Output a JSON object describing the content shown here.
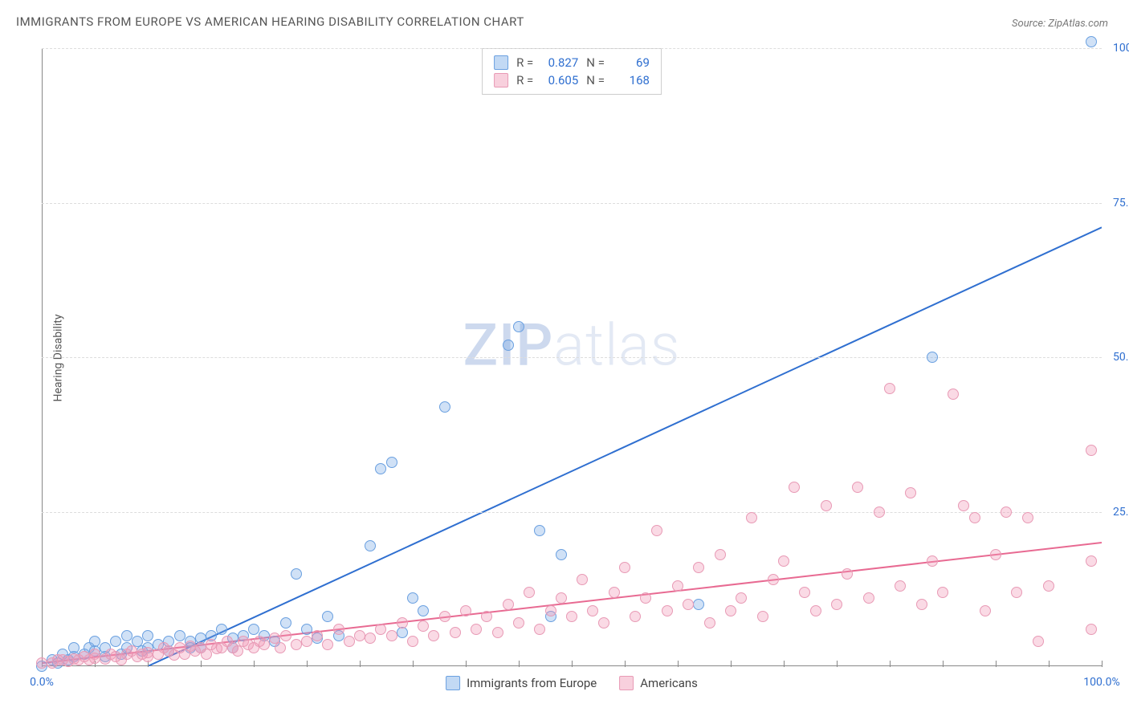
{
  "title": "IMMIGRANTS FROM EUROPE VS AMERICAN HEARING DISABILITY CORRELATION CHART",
  "source": "Source: ZipAtlas.com",
  "watermark_left": "ZIP",
  "watermark_right": "atlas",
  "chart": {
    "type": "scatter",
    "ylabel": "Hearing Disability",
    "xlim": [
      0,
      100
    ],
    "ylim": [
      0,
      100
    ],
    "y_ticks": [
      0,
      25,
      50,
      75,
      100
    ],
    "y_tick_labels": [
      "",
      "25.0%",
      "50.0%",
      "75.0%",
      "100.0%"
    ],
    "y_tick_color": "#2f6fd0",
    "x_ticks": [
      0,
      5,
      10,
      15,
      20,
      25,
      30,
      35,
      40,
      45,
      50,
      55,
      60,
      65,
      70,
      75,
      80,
      85,
      90,
      95,
      100
    ],
    "x_min_label": "0.0%",
    "x_max_label": "100.0%",
    "grid_color": "#dddddd",
    "axis_color": "#888888",
    "background_color": "#ffffff",
    "series": [
      {
        "name": "Immigrants from Europe",
        "legend_label": "Immigrants from Europe",
        "marker_fill": "rgba(120,170,230,0.35)",
        "marker_stroke": "#6aa0e0",
        "trend_color": "#2f6fd0",
        "trend_width": 2,
        "R": "0.827",
        "N": "69",
        "trend": {
          "x1": 10,
          "y1": 0,
          "x2": 100,
          "y2": 71
        },
        "points": [
          [
            0,
            0
          ],
          [
            1,
            1
          ],
          [
            1.5,
            0.5
          ],
          [
            2,
            2
          ],
          [
            2.5,
            1
          ],
          [
            3,
            3
          ],
          [
            3,
            1.5
          ],
          [
            4,
            2
          ],
          [
            4.5,
            3
          ],
          [
            5,
            2.5
          ],
          [
            5,
            4
          ],
          [
            6,
            3
          ],
          [
            6,
            1.5
          ],
          [
            7,
            4
          ],
          [
            7.5,
            2
          ],
          [
            8,
            5
          ],
          [
            8,
            3
          ],
          [
            9,
            4
          ],
          [
            9.5,
            2.5
          ],
          [
            10,
            5
          ],
          [
            10,
            3
          ],
          [
            11,
            3.5
          ],
          [
            12,
            4
          ],
          [
            12,
            2.5
          ],
          [
            13,
            5
          ],
          [
            14,
            4
          ],
          [
            14,
            3
          ],
          [
            15,
            4.5
          ],
          [
            15,
            3
          ],
          [
            16,
            5
          ],
          [
            17,
            6
          ],
          [
            18,
            4.5
          ],
          [
            18,
            3
          ],
          [
            19,
            5
          ],
          [
            20,
            6
          ],
          [
            21,
            5
          ],
          [
            22,
            4
          ],
          [
            23,
            7
          ],
          [
            24,
            15
          ],
          [
            25,
            6
          ],
          [
            26,
            4.5
          ],
          [
            27,
            8
          ],
          [
            28,
            5
          ],
          [
            31,
            19.5
          ],
          [
            32,
            32
          ],
          [
            33,
            33
          ],
          [
            34,
            5.5
          ],
          [
            35,
            11
          ],
          [
            36,
            9
          ],
          [
            38,
            42
          ],
          [
            44,
            52
          ],
          [
            45,
            55
          ],
          [
            47,
            22
          ],
          [
            48,
            8
          ],
          [
            49,
            18
          ],
          [
            62,
            10
          ],
          [
            84,
            50
          ],
          [
            99,
            101
          ]
        ]
      },
      {
        "name": "Americans",
        "legend_label": "Americans",
        "marker_fill": "rgba(240,150,180,0.35)",
        "marker_stroke": "#e89ab5",
        "trend_color": "#e86a92",
        "trend_width": 2,
        "R": "0.605",
        "N": "168",
        "trend": {
          "x1": 0,
          "y1": 0.5,
          "x2": 100,
          "y2": 20
        },
        "points": [
          [
            0,
            0.5
          ],
          [
            1,
            0.5
          ],
          [
            1.5,
            1
          ],
          [
            2,
            1
          ],
          [
            2.5,
            0.8
          ],
          [
            3,
            1.2
          ],
          [
            3.5,
            1
          ],
          [
            4,
            1.5
          ],
          [
            4.5,
            1
          ],
          [
            5,
            1.3
          ],
          [
            5,
            2
          ],
          [
            6,
            1.2
          ],
          [
            6.5,
            2
          ],
          [
            7,
            1.5
          ],
          [
            7.5,
            1
          ],
          [
            8,
            2
          ],
          [
            8.5,
            2.5
          ],
          [
            9,
            1.5
          ],
          [
            9.5,
            2
          ],
          [
            10,
            2.2
          ],
          [
            10,
            1.5
          ],
          [
            11,
            2
          ],
          [
            11.5,
            3
          ],
          [
            12,
            2.5
          ],
          [
            12.5,
            1.8
          ],
          [
            13,
            3
          ],
          [
            13.5,
            2
          ],
          [
            14,
            3.2
          ],
          [
            14.5,
            2.5
          ],
          [
            15,
            3
          ],
          [
            15.5,
            2
          ],
          [
            16,
            3.5
          ],
          [
            16.5,
            2.8
          ],
          [
            17,
            3
          ],
          [
            17.5,
            4
          ],
          [
            18,
            3
          ],
          [
            18.5,
            2.5
          ],
          [
            19,
            4
          ],
          [
            19.5,
            3.5
          ],
          [
            20,
            3
          ],
          [
            20.5,
            4
          ],
          [
            21,
            3.5
          ],
          [
            22,
            4.5
          ],
          [
            22.5,
            3
          ],
          [
            23,
            5
          ],
          [
            24,
            3.5
          ],
          [
            25,
            4
          ],
          [
            26,
            5
          ],
          [
            27,
            3.5
          ],
          [
            28,
            6
          ],
          [
            29,
            4
          ],
          [
            30,
            5
          ],
          [
            31,
            4.5
          ],
          [
            32,
            6
          ],
          [
            33,
            5
          ],
          [
            34,
            7
          ],
          [
            35,
            4
          ],
          [
            36,
            6.5
          ],
          [
            37,
            5
          ],
          [
            38,
            8
          ],
          [
            39,
            5.5
          ],
          [
            40,
            9
          ],
          [
            41,
            6
          ],
          [
            42,
            8
          ],
          [
            43,
            5.5
          ],
          [
            44,
            10
          ],
          [
            45,
            7
          ],
          [
            46,
            12
          ],
          [
            47,
            6
          ],
          [
            48,
            9
          ],
          [
            49,
            11
          ],
          [
            50,
            8
          ],
          [
            51,
            14
          ],
          [
            52,
            9
          ],
          [
            53,
            7
          ],
          [
            54,
            12
          ],
          [
            55,
            16
          ],
          [
            56,
            8
          ],
          [
            57,
            11
          ],
          [
            58,
            22
          ],
          [
            59,
            9
          ],
          [
            60,
            13
          ],
          [
            61,
            10
          ],
          [
            62,
            16
          ],
          [
            63,
            7
          ],
          [
            64,
            18
          ],
          [
            65,
            9
          ],
          [
            66,
            11
          ],
          [
            67,
            24
          ],
          [
            68,
            8
          ],
          [
            69,
            14
          ],
          [
            70,
            17
          ],
          [
            71,
            29
          ],
          [
            72,
            12
          ],
          [
            73,
            9
          ],
          [
            74,
            26
          ],
          [
            75,
            10
          ],
          [
            76,
            15
          ],
          [
            77,
            29
          ],
          [
            78,
            11
          ],
          [
            79,
            25
          ],
          [
            80,
            45
          ],
          [
            81,
            13
          ],
          [
            82,
            28
          ],
          [
            83,
            10
          ],
          [
            84,
            17
          ],
          [
            85,
            12
          ],
          [
            86,
            44
          ],
          [
            87,
            26
          ],
          [
            88,
            24
          ],
          [
            89,
            9
          ],
          [
            90,
            18
          ],
          [
            91,
            25
          ],
          [
            92,
            12
          ],
          [
            93,
            24
          ],
          [
            94,
            4
          ],
          [
            95,
            13
          ],
          [
            99,
            35
          ],
          [
            99,
            17
          ],
          [
            99,
            6
          ]
        ]
      }
    ]
  }
}
